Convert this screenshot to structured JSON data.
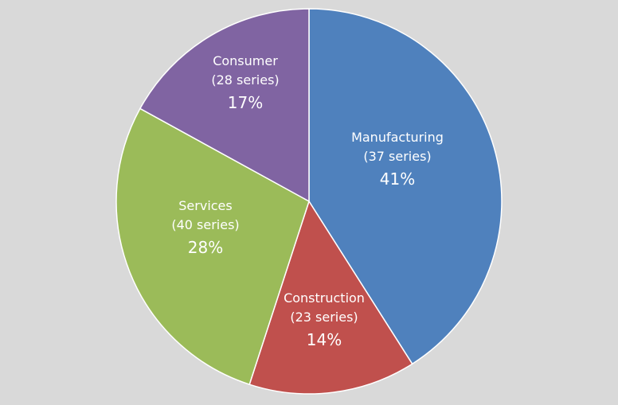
{
  "chart_data": {
    "type": "pie",
    "title": "",
    "background_color": "#d9d9d9",
    "label_color": "#ffffff",
    "slices": [
      {
        "label": "Manufacturing",
        "count_label": "(37 series)",
        "percent_label": "41%",
        "value": 41,
        "color": "#4f81bd"
      },
      {
        "label": "Construction",
        "count_label": "(23 series)",
        "percent_label": "14%",
        "value": 14,
        "color": "#c0504d"
      },
      {
        "label": "Services",
        "count_label": "(40 series)",
        "percent_label": "28%",
        "value": 28,
        "color": "#9bbb59"
      },
      {
        "label": "Consumer",
        "count_label": "(28 series)",
        "percent_label": "17%",
        "value": 17,
        "color": "#8064a2"
      }
    ]
  }
}
